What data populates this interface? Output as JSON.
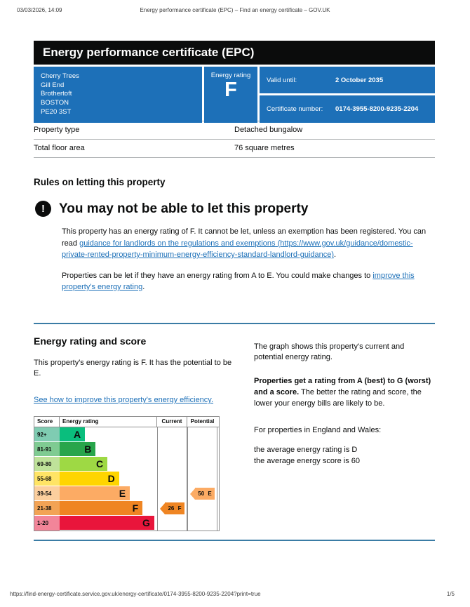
{
  "meta": {
    "print_datetime": "03/03/2026, 14:09",
    "print_title": "Energy performance certificate (EPC) – Find an energy certificate – GOV.UK",
    "footer_url": "https://find-energy-certificate.service.gov.uk/energy-certificate/0174-3955-8200-9235-2204?print=true",
    "page_number": "1/5"
  },
  "icons": {
    "warning": "!"
  },
  "banner": {
    "title": "Energy performance certificate (EPC)"
  },
  "summary": {
    "address_lines": [
      "Cherry Trees",
      "Gill End",
      "Brothertoft",
      "BOSTON",
      "PE20 3ST"
    ],
    "energy_rating_label": "Energy rating",
    "energy_rating": "F",
    "valid_until_label": "Valid until:",
    "valid_until": "2 October 2035",
    "certificate_number_label": "Certificate number:",
    "certificate_number": "0174-3955-8200-9235-2204"
  },
  "property_table": {
    "rows": [
      {
        "label": "Property type",
        "value": "Detached bungalow"
      },
      {
        "label": "Total floor area",
        "value": "76 square metres"
      }
    ]
  },
  "letting_rules": {
    "section_heading": "Rules on letting this property",
    "warning_heading": "You may not be able to let this property",
    "para1_before": "This property has an energy rating of F. It cannot be let, unless an exemption has been registered. You can read ",
    "para1_link": "guidance for landlords on the regulations and exemptions",
    "para1_url": " (https://www.gov.uk/guidance/domestic-private-rented-property-minimum-energy-efficiency-standard-landlord-guidance)",
    "para1_after": ".",
    "para2_before": "Properties can be let if they have an energy rating from A to E. You could make changes to ",
    "para2_link": "improve this property's energy rating",
    "para2_after": "."
  },
  "rating_section": {
    "heading": "Energy rating and score",
    "intro": "This property's energy rating is F. It has the potential to be E.",
    "improve_link": "See how to improve this property's energy efficiency.",
    "right_para1": "The graph shows this property's current and potential energy rating.",
    "right_para2_bold": "Properties get a rating from A (best) to G (worst) and a score.",
    "right_para2_rest": " The better the rating and score, the lower your energy bills are likely to be.",
    "right_para3": "For properties in England and Wales:",
    "right_para4_line1": "the average energy rating is D",
    "right_para4_line2": "the average energy score is 60"
  },
  "chart_data": {
    "type": "epc-rating-bars",
    "title": "Energy rating and score",
    "columns": [
      "Score",
      "Energy rating",
      "Current",
      "Potential"
    ],
    "bands": [
      {
        "letter": "A",
        "score_range": "92+",
        "bar_color": "#0abe7d",
        "score_bg": "#7fccb2",
        "width_pct": 26
      },
      {
        "letter": "B",
        "score_range": "81-91",
        "bar_color": "#28a54b",
        "score_bg": "#7fcb92",
        "width_pct": 37
      },
      {
        "letter": "C",
        "score_range": "69-80",
        "bar_color": "#9ed944",
        "score_bg": "#bfe29a",
        "width_pct": 49
      },
      {
        "letter": "D",
        "score_range": "55-68",
        "bar_color": "#ffd500",
        "score_bg": "#ffe465",
        "width_pct": 61
      },
      {
        "letter": "E",
        "score_range": "39-54",
        "bar_color": "#fcab64",
        "score_bg": "#fccf9e",
        "width_pct": 72
      },
      {
        "letter": "F",
        "score_range": "21-38",
        "bar_color": "#ef8523",
        "score_bg": "#f2a355",
        "width_pct": 85
      },
      {
        "letter": "G",
        "score_range": "1-20",
        "bar_color": "#e9153b",
        "score_bg": "#f28599",
        "width_pct": 97
      }
    ],
    "current": {
      "value": 26,
      "band": "F",
      "label": "26 F",
      "color": "#ef8523"
    },
    "potential": {
      "value": 50,
      "band": "E",
      "label": "50 E",
      "color": "#fcab64"
    }
  },
  "colors": {
    "panel_blue": "#1d70b8",
    "link_blue": "#1d70b8",
    "divider_blue": "#3a7ca5",
    "banner_black": "#0b0c0c"
  }
}
